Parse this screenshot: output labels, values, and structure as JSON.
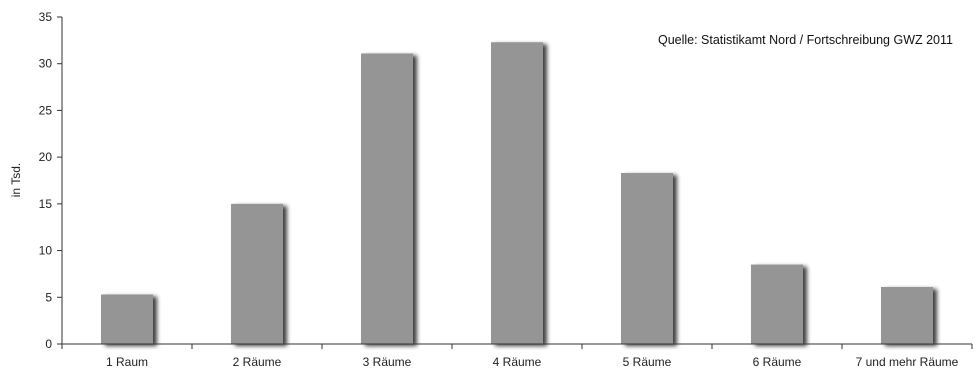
{
  "chart_data": {
    "type": "bar",
    "categories": [
      "1 Raum",
      "2 Räume",
      "3 Räume",
      "4 Räume",
      "5 Räume",
      "6 Räume",
      "7 und mehr Räume"
    ],
    "values": [
      5.3,
      15.0,
      31.1,
      32.3,
      18.3,
      8.5,
      6.1
    ],
    "ylabel": "in Tsd.",
    "ylim": [
      0,
      35
    ],
    "yticks": [
      0,
      5,
      10,
      15,
      20,
      25,
      30,
      35
    ],
    "source": "Quelle: Statistikamt Nord / Fortschreibung GWZ 2011",
    "grid": false,
    "colors": {
      "bar": "#959595",
      "shadow": "#3a3a3a",
      "axis": "#333333"
    }
  }
}
